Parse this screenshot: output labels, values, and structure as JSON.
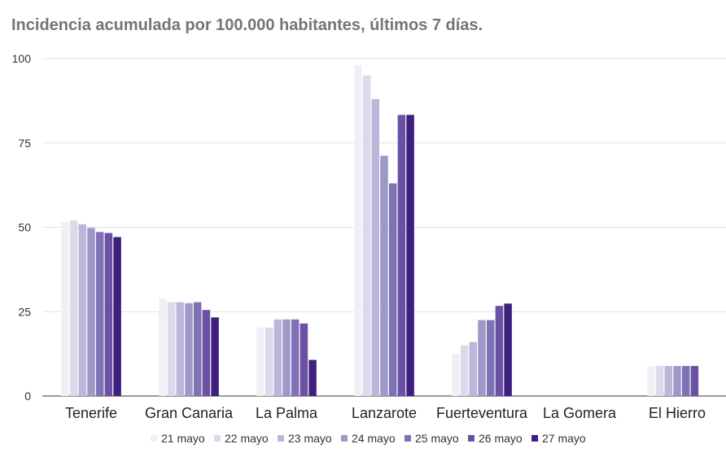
{
  "chart_data": {
    "type": "bar",
    "title": "Incidencia acumulada por 100.000 habitantes, últimos 7 días.",
    "xlabel": "",
    "ylabel": "",
    "ylim": [
      0,
      100
    ],
    "yticks": [
      "0",
      "25",
      "50",
      "75",
      "100"
    ],
    "grid": true,
    "legend_position": "bottom",
    "categories": [
      "Tenerife",
      "Gran Canaria",
      "La Palma",
      "Lanzarote",
      "Fuerteventura",
      "La Gomera",
      "El Hierro"
    ],
    "series": [
      {
        "name": "21 mayo",
        "color": "#f0eff6",
        "values": [
          51.5,
          29.0,
          20.3,
          98.0,
          12.4,
          0,
          8.9
        ]
      },
      {
        "name": "22 mayo",
        "color": "#dcd9eb",
        "values": [
          52.1,
          27.8,
          20.3,
          95.0,
          15.0,
          0,
          8.9
        ]
      },
      {
        "name": "23 mayo",
        "color": "#bcb7da",
        "values": [
          50.9,
          27.8,
          22.7,
          88.0,
          16.0,
          0,
          8.9
        ]
      },
      {
        "name": "24 mayo",
        "color": "#9e98c9",
        "values": [
          49.8,
          27.5,
          22.7,
          71.2,
          22.5,
          0,
          8.9
        ]
      },
      {
        "name": "25 mayo",
        "color": "#7f71b5",
        "values": [
          48.6,
          27.8,
          22.7,
          63.0,
          22.5,
          0,
          8.9
        ]
      },
      {
        "name": "26 mayo",
        "color": "#6a51a3",
        "values": [
          48.3,
          25.5,
          21.5,
          83.3,
          26.7,
          0,
          8.9
        ]
      },
      {
        "name": "27 mayo",
        "color": "#3f1f7f",
        "values": [
          47.1,
          23.3,
          10.7,
          83.3,
          27.4,
          0,
          0
        ]
      }
    ]
  }
}
